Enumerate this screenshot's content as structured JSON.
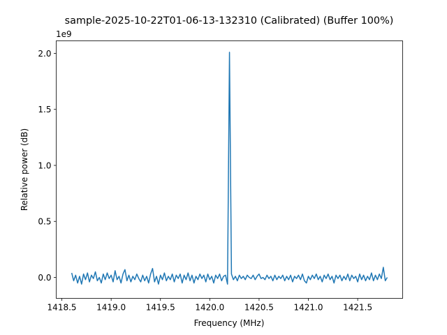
{
  "chart_data": {
    "type": "line",
    "title": "sample-2025-10-22T01-06-13-132310 (Calibrated) (Buffer 100%)",
    "xlabel": "Frequency (MHz)",
    "ylabel": "Relative power (dB)",
    "y_offset_text": "1e9",
    "xlim": [
      1418.443,
      1421.956
    ],
    "ylim": [
      -0.187,
      2.112
    ],
    "x_ticks": [
      "1418.5",
      "1419.0",
      "1419.5",
      "1420.0",
      "1420.5",
      "1421.0",
      "1421.5"
    ],
    "x_tick_values": [
      1418.5,
      1419.0,
      1419.5,
      1420.0,
      1420.5,
      1421.0,
      1421.5
    ],
    "y_ticks": [
      "0.0",
      "0.5",
      "1.0",
      "1.5",
      "2.0"
    ],
    "y_tick_values": [
      0,
      0.5,
      1.0,
      1.5,
      2.0
    ],
    "grid": false,
    "line_color": "#1f77b4",
    "x_start": 1418.6,
    "x_step": 0.02,
    "y": [
      0.04,
      -0.03,
      0.02,
      -0.05,
      0.01,
      -0.06,
      0.03,
      -0.02,
      0.04,
      -0.04,
      0.02,
      -0.01,
      0.05,
      -0.03,
      0.0,
      -0.05,
      0.03,
      -0.02,
      0.04,
      -0.01,
      0.02,
      -0.04,
      0.06,
      -0.02,
      0.01,
      -0.05,
      0.03,
      0.07,
      -0.03,
      0.02,
      -0.04,
      0.01,
      -0.02,
      0.03,
      -0.01,
      -0.04,
      0.02,
      -0.03,
      0.01,
      -0.05,
      0.03,
      0.08,
      -0.04,
      0.01,
      -0.06,
      0.02,
      -0.02,
      0.04,
      -0.03,
      0.01,
      -0.02,
      0.03,
      -0.04,
      0.02,
      -0.01,
      0.03,
      -0.05,
      0.02,
      -0.02,
      0.04,
      -0.03,
      0.02,
      -0.05,
      0.01,
      -0.02,
      0.03,
      -0.01,
      0.02,
      -0.04,
      0.03,
      -0.02,
      0.01,
      -0.05,
      0.02,
      -0.01,
      0.03,
      -0.03,
      0.01,
      0.02,
      -0.06,
      2.01,
      0.03,
      -0.02,
      0.01,
      -0.03,
      0.02,
      -0.01,
      0.01,
      -0.02,
      0.02,
      0.0,
      -0.01,
      0.02,
      -0.02,
      0.01,
      0.03,
      -0.01,
      0.0,
      -0.02,
      0.02,
      -0.01,
      0.01,
      -0.03,
      0.02,
      -0.02,
      0.01,
      -0.01,
      0.02,
      -0.03,
      0.01,
      -0.02,
      0.02,
      -0.04,
      0.01,
      -0.01,
      0.02,
      -0.02,
      0.03,
      -0.03,
      -0.05,
      0.01,
      -0.02,
      0.02,
      -0.01,
      0.03,
      -0.02,
      0.01,
      -0.04,
      0.02,
      -0.01,
      0.03,
      -0.02,
      0.01,
      -0.05,
      0.02,
      -0.01,
      0.02,
      -0.03,
      0.01,
      -0.02,
      0.03,
      -0.03,
      0.02,
      -0.01,
      0.01,
      -0.04,
      0.03,
      -0.02,
      0.02,
      -0.03,
      0.01,
      -0.02,
      0.04,
      -0.03,
      0.02,
      -0.02,
      0.03,
      -0.01,
      0.09,
      -0.03,
      0.0
    ]
  }
}
